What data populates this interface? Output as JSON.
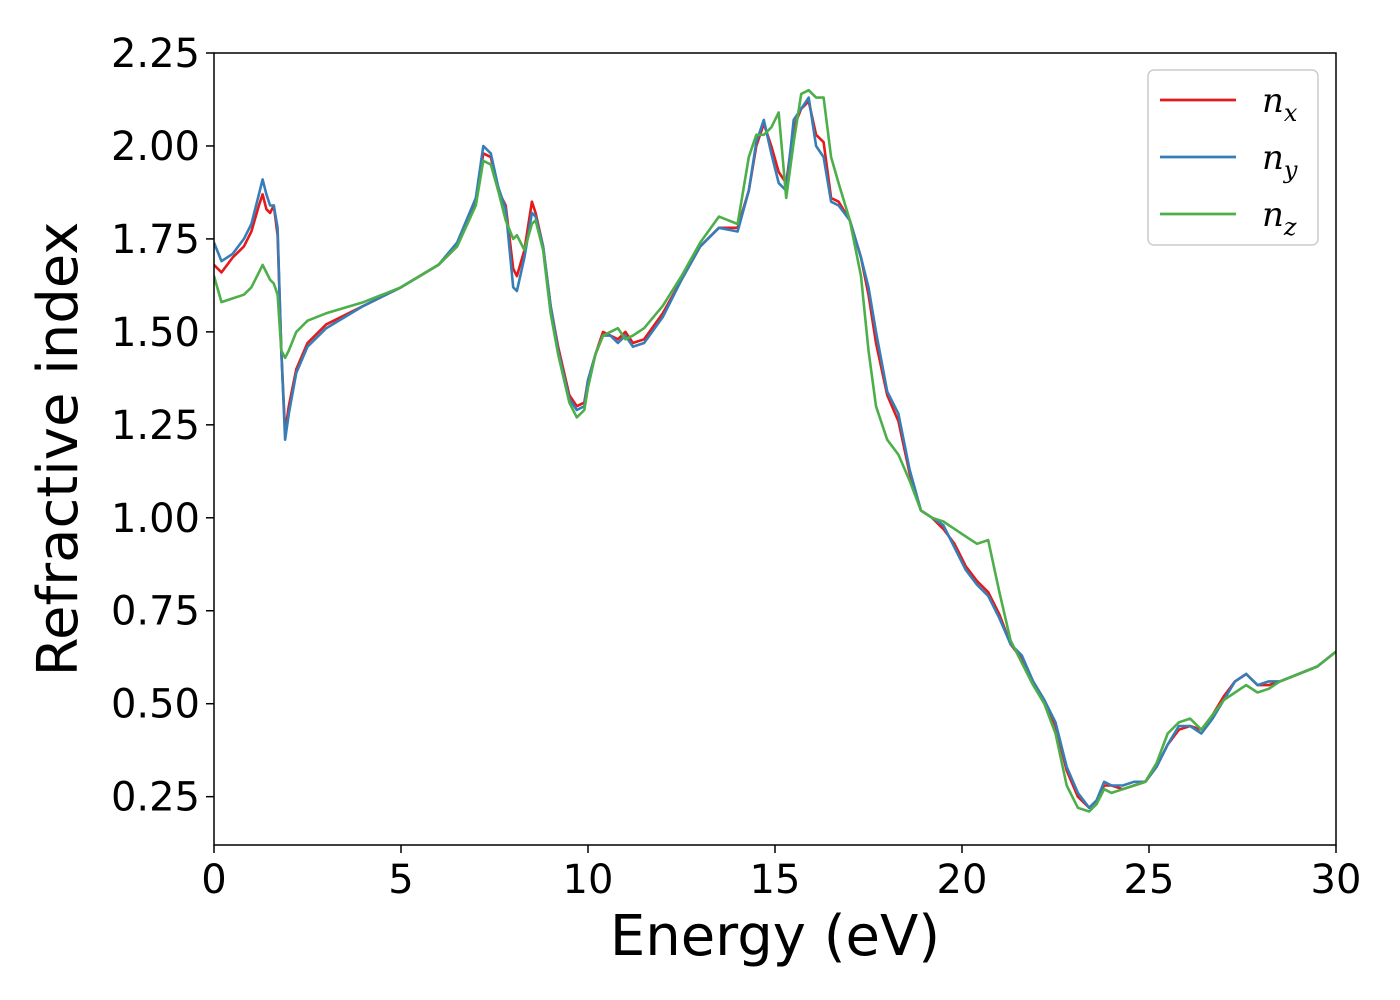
{
  "chart_data": {
    "type": "line",
    "title": "",
    "xlabel": "Energy (eV)",
    "ylabel": "Refractive index",
    "xlim": [
      0,
      30
    ],
    "ylim": [
      0.12,
      2.25
    ],
    "xticks": [
      0,
      5,
      10,
      15,
      20,
      25,
      30
    ],
    "xtick_labels": [
      "0",
      "5",
      "10",
      "15",
      "20",
      "25",
      "30"
    ],
    "yticks": [
      0.25,
      0.5,
      0.75,
      1.0,
      1.25,
      1.5,
      1.75,
      2.0,
      2.25
    ],
    "ytick_labels": [
      "0.25",
      "0.50",
      "0.75",
      "1.00",
      "1.25",
      "1.50",
      "1.75",
      "2.00",
      "2.25"
    ],
    "grid": false,
    "legend_position": "top-right",
    "series": [
      {
        "name": "n",
        "subscript": "x",
        "color": "#e41a1c",
        "x": [
          0,
          0.2,
          0.5,
          0.8,
          1.0,
          1.2,
          1.3,
          1.4,
          1.5,
          1.6,
          1.7,
          1.8,
          1.9,
          2.0,
          2.2,
          2.5,
          3.0,
          4.0,
          5.0,
          6.0,
          6.5,
          7.0,
          7.2,
          7.4,
          7.6,
          7.8,
          8.0,
          8.1,
          8.3,
          8.5,
          8.6,
          8.8,
          9.0,
          9.2,
          9.5,
          9.7,
          9.9,
          10.0,
          10.2,
          10.4,
          10.6,
          10.8,
          11.0,
          11.2,
          11.5,
          12.0,
          12.5,
          13.0,
          13.5,
          14.0,
          14.3,
          14.5,
          14.7,
          14.9,
          15.1,
          15.3,
          15.5,
          15.7,
          15.9,
          16.1,
          16.3,
          16.5,
          16.7,
          17.0,
          17.3,
          17.5,
          17.7,
          18.0,
          18.3,
          18.6,
          18.9,
          19.2,
          19.5,
          19.8,
          20.1,
          20.4,
          20.7,
          21.0,
          21.3,
          21.6,
          21.9,
          22.2,
          22.5,
          22.8,
          23.1,
          23.4,
          23.6,
          23.8,
          24.0,
          24.3,
          24.6,
          24.9,
          25.2,
          25.5,
          25.8,
          26.1,
          26.4,
          26.7,
          27.0,
          27.3,
          27.6,
          27.9,
          28.2,
          28.5,
          29.0,
          29.5,
          30.0
        ],
        "values": [
          1.68,
          1.66,
          1.7,
          1.73,
          1.77,
          1.84,
          1.87,
          1.83,
          1.82,
          1.84,
          1.76,
          1.45,
          1.23,
          1.3,
          1.4,
          1.47,
          1.52,
          1.57,
          1.62,
          1.68,
          1.73,
          1.85,
          1.98,
          1.97,
          1.88,
          1.84,
          1.67,
          1.65,
          1.72,
          1.85,
          1.82,
          1.73,
          1.57,
          1.46,
          1.33,
          1.3,
          1.31,
          1.37,
          1.44,
          1.5,
          1.49,
          1.48,
          1.5,
          1.47,
          1.48,
          1.55,
          1.64,
          1.73,
          1.78,
          1.78,
          1.88,
          2.0,
          2.06,
          2.0,
          1.93,
          1.9,
          2.05,
          2.1,
          2.12,
          2.03,
          2.01,
          1.86,
          1.85,
          1.8,
          1.7,
          1.6,
          1.47,
          1.33,
          1.26,
          1.12,
          1.02,
          1.0,
          0.97,
          0.93,
          0.87,
          0.83,
          0.8,
          0.74,
          0.66,
          0.62,
          0.56,
          0.51,
          0.44,
          0.32,
          0.25,
          0.22,
          0.24,
          0.28,
          0.28,
          0.27,
          0.28,
          0.29,
          0.33,
          0.39,
          0.43,
          0.44,
          0.43,
          0.47,
          0.52,
          0.56,
          0.58,
          0.55,
          0.55,
          0.56,
          0.58,
          0.6,
          0.64
        ]
      },
      {
        "name": "n",
        "subscript": "y",
        "color": "#377eb8",
        "x": [
          0,
          0.2,
          0.5,
          0.8,
          1.0,
          1.2,
          1.3,
          1.4,
          1.5,
          1.6,
          1.7,
          1.8,
          1.9,
          2.0,
          2.2,
          2.5,
          3.0,
          4.0,
          5.0,
          6.0,
          6.5,
          7.0,
          7.2,
          7.4,
          7.6,
          7.8,
          8.0,
          8.1,
          8.3,
          8.5,
          8.6,
          8.8,
          9.0,
          9.2,
          9.5,
          9.7,
          9.9,
          10.0,
          10.2,
          10.4,
          10.6,
          10.8,
          11.0,
          11.2,
          11.5,
          12.0,
          12.5,
          13.0,
          13.5,
          14.0,
          14.3,
          14.5,
          14.7,
          14.9,
          15.1,
          15.3,
          15.5,
          15.7,
          15.9,
          16.1,
          16.3,
          16.5,
          16.7,
          17.0,
          17.3,
          17.5,
          17.7,
          18.0,
          18.3,
          18.6,
          18.9,
          19.2,
          19.5,
          19.8,
          20.1,
          20.4,
          20.7,
          21.0,
          21.3,
          21.6,
          21.9,
          22.2,
          22.5,
          22.8,
          23.1,
          23.4,
          23.6,
          23.8,
          24.0,
          24.3,
          24.6,
          24.9,
          25.2,
          25.5,
          25.8,
          26.1,
          26.4,
          26.7,
          27.0,
          27.3,
          27.6,
          27.9,
          28.2,
          28.5,
          29.0,
          29.5,
          30.0
        ],
        "values": [
          1.74,
          1.69,
          1.71,
          1.75,
          1.79,
          1.87,
          1.91,
          1.87,
          1.84,
          1.84,
          1.78,
          1.45,
          1.21,
          1.28,
          1.39,
          1.46,
          1.51,
          1.57,
          1.62,
          1.68,
          1.74,
          1.86,
          2.0,
          1.98,
          1.89,
          1.83,
          1.62,
          1.61,
          1.7,
          1.82,
          1.81,
          1.73,
          1.57,
          1.45,
          1.32,
          1.29,
          1.3,
          1.37,
          1.44,
          1.49,
          1.49,
          1.47,
          1.49,
          1.46,
          1.47,
          1.54,
          1.64,
          1.73,
          1.78,
          1.77,
          1.88,
          2.01,
          2.07,
          1.98,
          1.9,
          1.88,
          2.07,
          2.1,
          2.13,
          2.0,
          1.97,
          1.85,
          1.84,
          1.8,
          1.7,
          1.62,
          1.5,
          1.34,
          1.28,
          1.13,
          1.02,
          1.0,
          0.98,
          0.92,
          0.86,
          0.82,
          0.79,
          0.73,
          0.66,
          0.63,
          0.56,
          0.51,
          0.45,
          0.33,
          0.26,
          0.22,
          0.24,
          0.29,
          0.28,
          0.28,
          0.29,
          0.29,
          0.33,
          0.39,
          0.44,
          0.44,
          0.42,
          0.46,
          0.51,
          0.56,
          0.58,
          0.55,
          0.56,
          0.56,
          0.58,
          0.6,
          0.64
        ]
      },
      {
        "name": "n",
        "subscript": "z",
        "color": "#4daf4a",
        "x": [
          0,
          0.2,
          0.5,
          0.8,
          1.0,
          1.2,
          1.3,
          1.4,
          1.5,
          1.6,
          1.7,
          1.8,
          1.9,
          2.0,
          2.2,
          2.5,
          3.0,
          4.0,
          5.0,
          6.0,
          6.5,
          7.0,
          7.2,
          7.4,
          7.6,
          7.8,
          8.0,
          8.1,
          8.3,
          8.5,
          8.6,
          8.8,
          9.0,
          9.2,
          9.5,
          9.7,
          9.9,
          10.0,
          10.2,
          10.4,
          10.6,
          10.8,
          11.0,
          11.2,
          11.5,
          12.0,
          12.5,
          13.0,
          13.5,
          14.0,
          14.3,
          14.5,
          14.7,
          14.9,
          15.1,
          15.3,
          15.5,
          15.7,
          15.9,
          16.1,
          16.3,
          16.5,
          16.7,
          17.0,
          17.3,
          17.5,
          17.7,
          18.0,
          18.3,
          18.6,
          18.9,
          19.2,
          19.5,
          19.8,
          20.1,
          20.4,
          20.7,
          21.0,
          21.3,
          21.6,
          21.9,
          22.2,
          22.5,
          22.8,
          23.1,
          23.4,
          23.6,
          23.8,
          24.0,
          24.3,
          24.6,
          24.9,
          25.2,
          25.5,
          25.8,
          26.1,
          26.4,
          26.7,
          27.0,
          27.3,
          27.6,
          27.9,
          28.2,
          28.5,
          29.0,
          29.5,
          30.0
        ],
        "values": [
          1.65,
          1.58,
          1.59,
          1.6,
          1.62,
          1.66,
          1.68,
          1.66,
          1.64,
          1.63,
          1.6,
          1.45,
          1.43,
          1.45,
          1.5,
          1.53,
          1.55,
          1.58,
          1.62,
          1.68,
          1.73,
          1.84,
          1.96,
          1.95,
          1.88,
          1.8,
          1.75,
          1.76,
          1.72,
          1.79,
          1.8,
          1.72,
          1.55,
          1.44,
          1.31,
          1.27,
          1.29,
          1.35,
          1.44,
          1.49,
          1.5,
          1.51,
          1.48,
          1.49,
          1.51,
          1.57,
          1.65,
          1.74,
          1.81,
          1.79,
          1.97,
          2.03,
          2.03,
          2.05,
          2.09,
          1.86,
          2.01,
          2.14,
          2.15,
          2.13,
          2.13,
          1.97,
          1.9,
          1.8,
          1.65,
          1.45,
          1.3,
          1.21,
          1.17,
          1.1,
          1.02,
          1.0,
          0.99,
          0.97,
          0.95,
          0.93,
          0.94,
          0.8,
          0.67,
          0.61,
          0.55,
          0.5,
          0.42,
          0.28,
          0.22,
          0.21,
          0.23,
          0.27,
          0.26,
          0.27,
          0.28,
          0.29,
          0.34,
          0.42,
          0.45,
          0.46,
          0.43,
          0.47,
          0.51,
          0.53,
          0.55,
          0.53,
          0.54,
          0.56,
          0.58,
          0.6,
          0.64
        ]
      }
    ]
  }
}
